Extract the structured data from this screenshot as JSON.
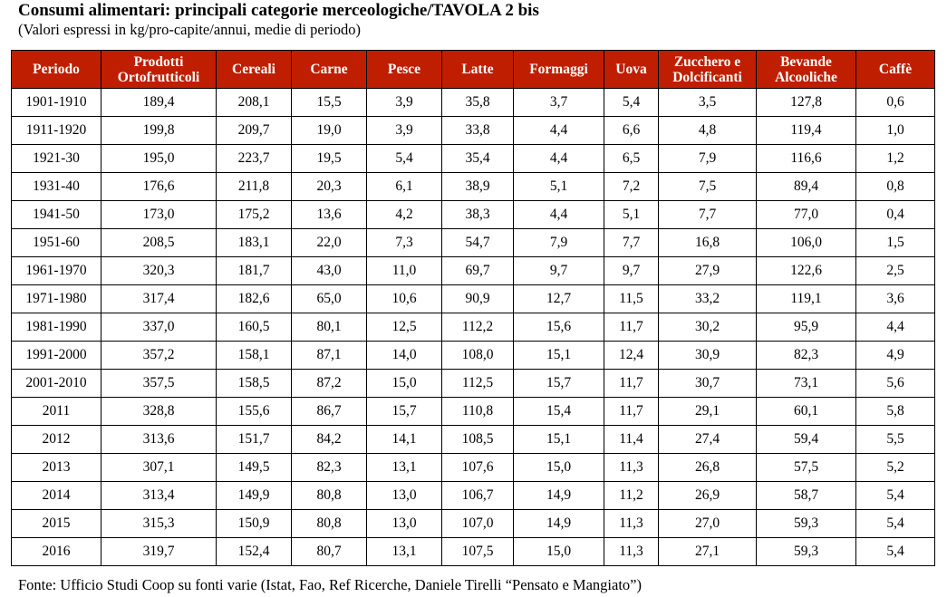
{
  "header": {
    "title": "Consumi alimentari: principali categorie merceologiche/TAVOLA 2 bis",
    "subtitle": "(Valori espressi in kg/pro-capite/annui, medie di periodo)"
  },
  "colors": {
    "header_bg": "#c01e00",
    "header_text": "#ffffff",
    "border": "#000000"
  },
  "table": {
    "columns": [
      {
        "line1": "Periodo",
        "line2": ""
      },
      {
        "line1": "Prodotti",
        "line2": "Ortofrutticoli"
      },
      {
        "line1": "Cereali",
        "line2": ""
      },
      {
        "line1": "Carne",
        "line2": ""
      },
      {
        "line1": "Pesce",
        "line2": ""
      },
      {
        "line1": "Latte",
        "line2": ""
      },
      {
        "line1": "Formaggi",
        "line2": ""
      },
      {
        "line1": "Uova",
        "line2": ""
      },
      {
        "line1": "Zucchero e",
        "line2": "Dolcificanti"
      },
      {
        "line1": "Bevande",
        "line2": "Alcooliche"
      },
      {
        "line1": "Caffè",
        "line2": ""
      }
    ],
    "rows": [
      [
        "1901-1910",
        "189,4",
        "208,1",
        "15,5",
        "3,9",
        "35,8",
        "3,7",
        "5,4",
        "3,5",
        "127,8",
        "0,6"
      ],
      [
        "1911-1920",
        "199,8",
        "209,7",
        "19,0",
        "3,9",
        "33,8",
        "4,4",
        "6,6",
        "4,8",
        "119,4",
        "1,0"
      ],
      [
        "1921-30",
        "195,0",
        "223,7",
        "19,5",
        "5,4",
        "35,4",
        "4,4",
        "6,5",
        "7,9",
        "116,6",
        "1,2"
      ],
      [
        "1931-40",
        "176,6",
        "211,8",
        "20,3",
        "6,1",
        "38,9",
        "5,1",
        "7,2",
        "7,5",
        "89,4",
        "0,8"
      ],
      [
        "1941-50",
        "173,0",
        "175,2",
        "13,6",
        "4,2",
        "38,3",
        "4,4",
        "5,1",
        "7,7",
        "77,0",
        "0,4"
      ],
      [
        "1951-60",
        "208,5",
        "183,1",
        "22,0",
        "7,3",
        "54,7",
        "7,9",
        "7,7",
        "16,8",
        "106,0",
        "1,5"
      ],
      [
        "1961-1970",
        "320,3",
        "181,7",
        "43,0",
        "11,0",
        "69,7",
        "9,7",
        "9,7",
        "27,9",
        "122,6",
        "2,5"
      ],
      [
        "1971-1980",
        "317,4",
        "182,6",
        "65,0",
        "10,6",
        "90,9",
        "12,7",
        "11,5",
        "33,2",
        "119,1",
        "3,6"
      ],
      [
        "1981-1990",
        "337,0",
        "160,5",
        "80,1",
        "12,5",
        "112,2",
        "15,6",
        "11,7",
        "30,2",
        "95,9",
        "4,4"
      ],
      [
        "1991-2000",
        "357,2",
        "158,1",
        "87,1",
        "14,0",
        "108,0",
        "15,1",
        "12,4",
        "30,9",
        "82,3",
        "4,9"
      ],
      [
        "2001-2010",
        "357,5",
        "158,5",
        "87,2",
        "15,0",
        "112,5",
        "15,7",
        "11,7",
        "30,7",
        "73,1",
        "5,6"
      ],
      [
        "2011",
        "328,8",
        "155,6",
        "86,7",
        "15,7",
        "110,8",
        "15,4",
        "11,7",
        "29,1",
        "60,1",
        "5,8"
      ],
      [
        "2012",
        "313,6",
        "151,7",
        "84,2",
        "14,1",
        "108,5",
        "15,1",
        "11,4",
        "27,4",
        "59,4",
        "5,5"
      ],
      [
        "2013",
        "307,1",
        "149,5",
        "82,3",
        "13,1",
        "107,6",
        "15,0",
        "11,3",
        "26,8",
        "57,5",
        "5,2"
      ],
      [
        "2014",
        "313,4",
        "149,9",
        "80,8",
        "13,0",
        "106,7",
        "14,9",
        "11,2",
        "26,9",
        "58,7",
        "5,4"
      ],
      [
        "2015",
        "315,3",
        "150,9",
        "80,8",
        "13,0",
        "107,0",
        "14,9",
        "11,3",
        "27,0",
        "59,3",
        "5,4"
      ],
      [
        "2016",
        "319,7",
        "152,4",
        "80,7",
        "13,1",
        "107,5",
        "15,0",
        "11,3",
        "27,1",
        "59,3",
        "5,4"
      ]
    ]
  },
  "footer": {
    "source": "Fonte: Ufficio Studi Coop su fonti varie (Istat, Fao, Ref Ricerche, Daniele Tirelli “Pensato e Mangiato”)"
  }
}
